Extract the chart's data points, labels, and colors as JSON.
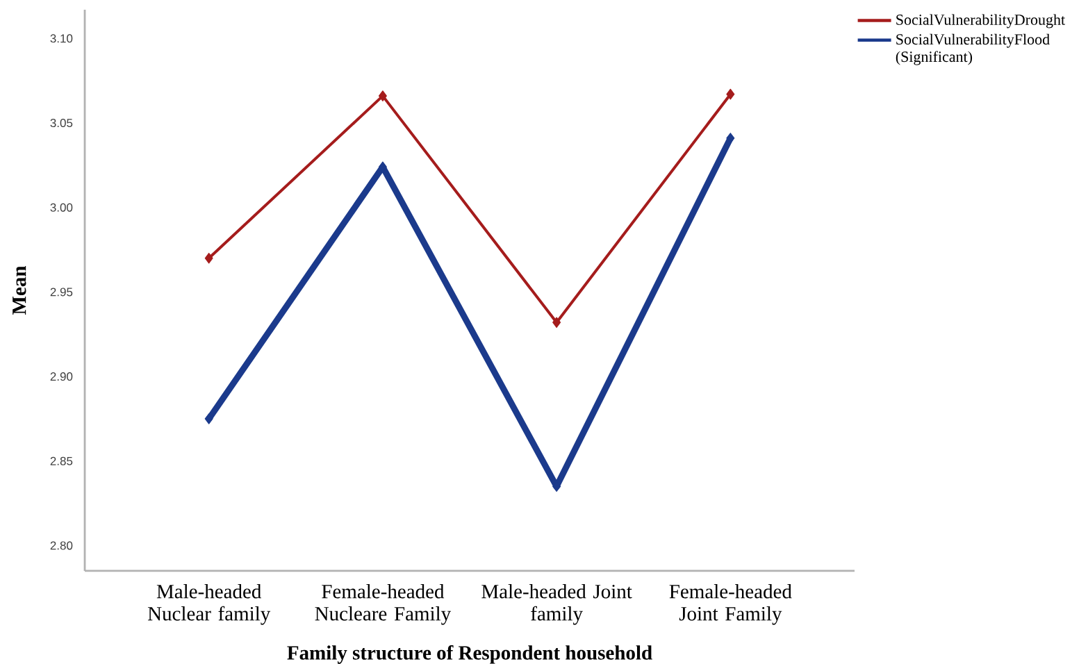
{
  "chart_data": {
    "type": "line",
    "xlabel": "Family structure of Respondent household",
    "ylabel": "Mean",
    "categories": [
      "Male-headed Nuclear family",
      "Female-headed Nucleare Family",
      "Male-headed Joint family",
      "Female-headed Joint Family"
    ],
    "series": [
      {
        "name": "SocialVulnerabilityDrought",
        "color": "#a51c1c",
        "values": [
          2.97,
          3.066,
          2.932,
          3.067
        ]
      },
      {
        "name": "SocialVulnerabilityFlood (Significant)",
        "color": "#1b3a8c",
        "values": [
          2.875,
          3.024,
          2.835,
          3.041
        ]
      }
    ],
    "ylim": [
      2.785,
      3.117
    ],
    "yticks": [
      {
        "value": 2.8,
        "label": "2.80"
      },
      {
        "value": 2.85,
        "label": "2.85"
      },
      {
        "value": 2.9,
        "label": "2.90"
      },
      {
        "value": 2.95,
        "label": "2.95"
      },
      {
        "value": 3.0,
        "label": "3.00"
      },
      {
        "value": 3.05,
        "label": "3.05"
      },
      {
        "value": 3.1,
        "label": "3.10"
      }
    ],
    "marker": "diamond",
    "line_style": "solid",
    "legend": "top right"
  }
}
